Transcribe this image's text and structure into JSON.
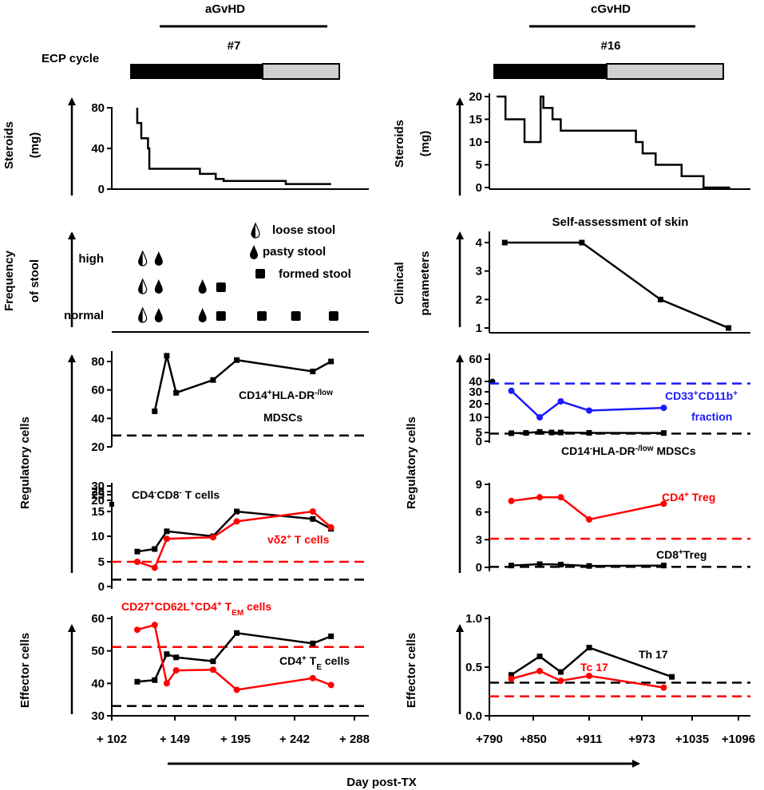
{
  "header": {
    "left_phase": "aGvHD",
    "right_phase": "cGvHD",
    "ecp_label": "ECP cycle",
    "left_cycle": "#7",
    "right_cycle": "#16"
  },
  "xaxis_label": "Day post-TX",
  "left_xticks": [
    "+ 102",
    "+ 149",
    "+ 195",
    "+ 242",
    "+ 288"
  ],
  "right_xticks": [
    "+790",
    "+850",
    "+911",
    "+973",
    "+1035",
    "+1096"
  ],
  "row_labels": {
    "steroids": [
      "Steroids",
      "(mg)"
    ],
    "stool": [
      "Frequency",
      "of stool"
    ],
    "clinical": [
      "Clinical",
      "parameters"
    ],
    "regulatory": "Regulatory cells",
    "effector": "Effector cells"
  },
  "stool_legend": {
    "loose": "loose stool",
    "pasty": "pasty stool",
    "formed": "formed stool",
    "levels": [
      "high",
      "normal"
    ]
  },
  "colors": {
    "black": "#000000",
    "red": "#ff0000",
    "blue": "#1a1aff",
    "ecp_gray": "#d0d0d0"
  },
  "chart_data": [
    {
      "id": "steroids_left",
      "type": "line",
      "ylabel": "Steroids (mg)",
      "yticks": [
        "0",
        "40",
        "80"
      ],
      "ylim": [
        0,
        90
      ],
      "x": [
        121,
        121,
        124,
        124,
        129,
        129,
        130,
        130,
        168,
        168,
        180,
        180,
        186,
        186,
        235,
        235,
        270
      ],
      "y": [
        80,
        65,
        65,
        50,
        50,
        40,
        40,
        20,
        20,
        15,
        15,
        10,
        10,
        8,
        8,
        5,
        5
      ],
      "step": true
    },
    {
      "id": "steroids_right",
      "type": "line",
      "ylabel": "Steroids (mg)",
      "yticks": [
        "0",
        "5",
        "10",
        "15",
        "20"
      ],
      "ylim": [
        0,
        21
      ],
      "x": [
        800,
        812,
        812,
        838,
        838,
        858,
        858,
        861,
        861,
        871,
        871,
        880,
        880,
        966,
        966,
        974,
        974,
        990,
        990,
        1022,
        1022,
        1050,
        1050,
        1085
      ],
      "y": [
        20,
        20,
        15,
        15,
        10,
        10,
        20,
        20,
        17.5,
        17.5,
        15,
        15,
        12.5,
        12.5,
        10,
        10,
        7.5,
        7.5,
        5,
        5,
        2.5,
        2.5,
        0,
        0
      ],
      "step": true
    },
    {
      "id": "stool_frequency",
      "type": "scatter",
      "points": [
        {
          "x": 125,
          "level": "high",
          "kind": "loose"
        },
        {
          "x": 137,
          "level": "high",
          "kind": "pasty"
        },
        {
          "x": 125,
          "level": "mid",
          "kind": "loose"
        },
        {
          "x": 137,
          "level": "mid",
          "kind": "pasty"
        },
        {
          "x": 170,
          "level": "mid",
          "kind": "pasty"
        },
        {
          "x": 184,
          "level": "mid",
          "kind": "formed"
        },
        {
          "x": 125,
          "level": "normal",
          "kind": "loose"
        },
        {
          "x": 137,
          "level": "normal",
          "kind": "pasty"
        },
        {
          "x": 170,
          "level": "normal",
          "kind": "pasty"
        },
        {
          "x": 184,
          "level": "normal",
          "kind": "formed"
        },
        {
          "x": 216,
          "level": "normal",
          "kind": "formed"
        },
        {
          "x": 243,
          "level": "normal",
          "kind": "formed"
        },
        {
          "x": 272,
          "level": "normal",
          "kind": "formed"
        }
      ]
    },
    {
      "id": "skin_self_assessment",
      "type": "line",
      "title": "Self-assessment of skin",
      "yticks": [
        "1",
        "2",
        "3",
        "4"
      ],
      "ylim": [
        0.8,
        4.3
      ],
      "x": [
        811,
        903,
        996,
        1083
      ],
      "y": [
        4,
        4,
        2,
        1
      ]
    },
    {
      "id": "mdsc_left",
      "type": "line",
      "yticks": [
        "20",
        "40",
        "60",
        "80"
      ],
      "ylim": [
        20,
        90
      ],
      "series": [
        {
          "name": "CD14+HLA-DR-/low MDSCs",
          "color": "#000000",
          "x": [
            134,
            143,
            150,
            178,
            196,
            256,
            270
          ],
          "y": [
            45,
            84,
            58,
            67,
            81,
            73,
            80
          ]
        }
      ],
      "reference": [
        {
          "y": 28,
          "color": "#000000"
        }
      ]
    },
    {
      "id": "mdsc_right",
      "type": "line",
      "yticks": [
        "0",
        "5",
        "10",
        "20",
        "30",
        "40",
        "60"
      ],
      "series": [
        {
          "name": "CD33+CD11b+ fraction",
          "color": "#1a1aff",
          "x": [
            820,
            857,
            880,
            911,
            1000
          ],
          "y": [
            31,
            10,
            22,
            15,
            17
          ]
        },
        {
          "name": "CD14-HLA-DR-/low MDSCs",
          "color": "#000000",
          "x": [
            820,
            840,
            857,
            870,
            880,
            911,
            1000
          ],
          "y": [
            4.6,
            4.8,
            5.2,
            5.0,
            5.0,
            4.8,
            4.7
          ]
        }
      ],
      "reference": [
        {
          "y": 38,
          "color": "#1a1aff"
        },
        {
          "y": 4.4,
          "color": "#000000"
        }
      ]
    },
    {
      "id": "tcells_left",
      "type": "line",
      "yticks": [
        "0",
        "5",
        "10",
        "15",
        "20",
        "25",
        "28",
        "30"
      ],
      "series": [
        {
          "name": "CD4-CD8- T cells",
          "color": "#000000",
          "x": [
            121,
            134,
            143,
            178,
            196,
            256,
            270
          ],
          "y": [
            7,
            7.5,
            11,
            10,
            15,
            13.5,
            11.5
          ]
        },
        {
          "name": "vδ2+ T cells",
          "color": "#ff0000",
          "x": [
            121,
            134,
            143,
            178,
            196,
            256,
            270
          ],
          "y": [
            5,
            3.8,
            9.5,
            9.8,
            13,
            15,
            11.8
          ]
        }
      ],
      "reference": [
        {
          "y": 5,
          "color": "#ff0000"
        },
        {
          "y": 1.4,
          "color": "#000000"
        }
      ]
    },
    {
      "id": "treg_right",
      "type": "line",
      "yticks": [
        "0",
        "3",
        "6",
        "9"
      ],
      "ylim": [
        -0.6,
        9
      ],
      "series": [
        {
          "name": "CD4+ Treg",
          "color": "#ff0000",
          "x": [
            820,
            857,
            880,
            911,
            1000
          ],
          "y": [
            7.2,
            7.6,
            7.6,
            5.2,
            6.9
          ]
        },
        {
          "name": "CD8+ Treg",
          "color": "#000000",
          "x": [
            820,
            857,
            880,
            911,
            1000
          ],
          "y": [
            0.2,
            0.35,
            0.3,
            0.15,
            0.2
          ]
        }
      ],
      "reference": [
        {
          "y": 3.1,
          "color": "#ff0000"
        },
        {
          "y": 0.05,
          "color": "#000000"
        }
      ]
    },
    {
      "id": "effector_left",
      "type": "line",
      "yticks": [
        "30",
        "40",
        "50",
        "60"
      ],
      "ylim": [
        30,
        60
      ],
      "series": [
        {
          "name": "CD4+ TE cells",
          "color": "#000000",
          "x": [
            121,
            134,
            143,
            150,
            178,
            196,
            256,
            270
          ],
          "y": [
            40.5,
            41,
            49,
            48,
            46.8,
            55.5,
            52.3,
            54.5
          ]
        },
        {
          "name": "CD27+CD62L+CD4+ TEM cells",
          "color": "#ff0000",
          "x": [
            121,
            134,
            143,
            150,
            178,
            196,
            256,
            270
          ],
          "y": [
            56.5,
            58,
            40,
            44,
            44.2,
            38,
            41.6,
            39.5
          ]
        }
      ],
      "reference": [
        {
          "y": 51.2,
          "color": "#ff0000"
        },
        {
          "y": 33,
          "color": "#000000"
        }
      ]
    },
    {
      "id": "effector_right",
      "type": "line",
      "yticks": [
        "0.0",
        "0.5",
        "1.0"
      ],
      "ylim": [
        0,
        1
      ],
      "series": [
        {
          "name": "Th 17",
          "color": "#000000",
          "x": [
            820,
            857,
            880,
            911,
            1010
          ],
          "y": [
            0.42,
            0.61,
            0.45,
            0.7,
            0.4
          ]
        },
        {
          "name": "Tc 17",
          "color": "#ff0000",
          "x": [
            820,
            857,
            880,
            911,
            1000
          ],
          "y": [
            0.38,
            0.46,
            0.36,
            0.41,
            0.29
          ]
        }
      ],
      "reference": [
        {
          "y": 0.34,
          "color": "#000000"
        },
        {
          "y": 0.2,
          "color": "#ff0000"
        }
      ]
    }
  ]
}
